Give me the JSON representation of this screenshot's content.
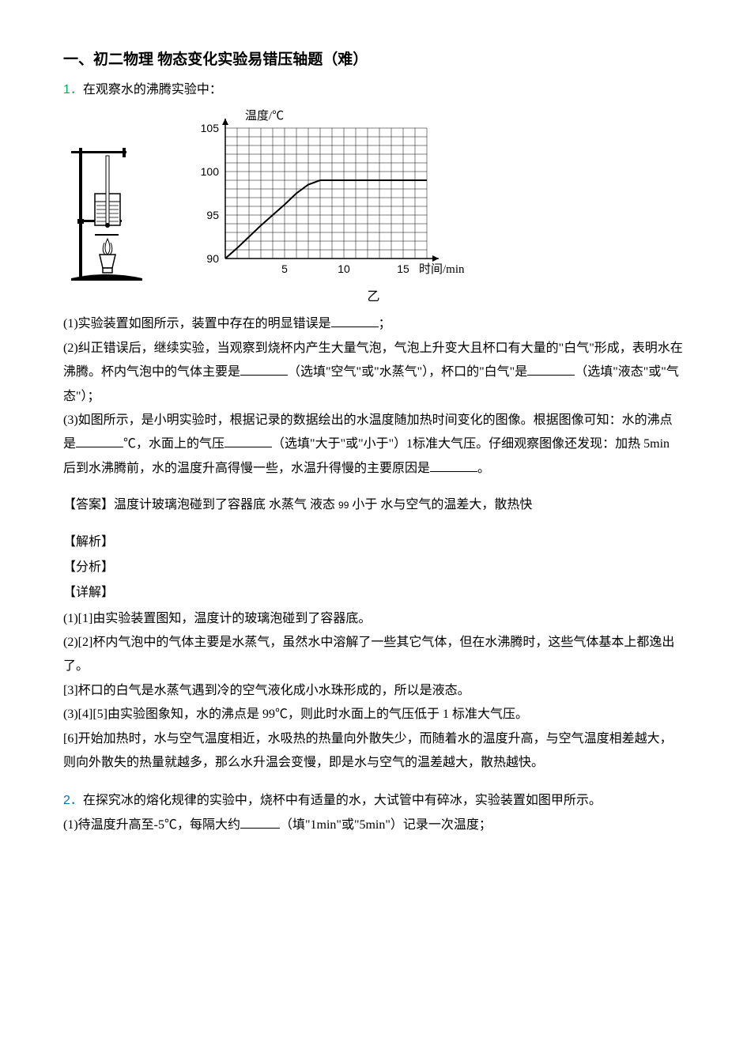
{
  "section_title": "一、初二物理 物态变化实验易错压轴题（难）",
  "q1": {
    "num": "1．",
    "stem": "在观察水的沸腾实验中：",
    "caption": "乙",
    "p1_a": "(1)实验装置如图所示，装置中存在的明显错误是",
    "p1_b": "；",
    "p2_a": "(2)纠正错误后，继续实验，当观察到烧杯内产生大量气泡，气泡上升变大且杯口有大量的\"白气\"形成，表明水在沸腾。杯内气泡中的气体主要是",
    "p2_b": "（选填\"空气\"或\"水蒸气\"），杯口的\"白气\"是",
    "p2_c": "（选填\"液态\"或\"气态\"）；",
    "p3_a": "(3)如图所示，是小明实验时，根据记录的数据绘出的水温度随加热时间变化的图像。根据图像可知：水的沸点是",
    "p3_b": "℃，水面上的气压",
    "p3_c": "（选填\"大于\"或\"小于\"）1标准大气压。仔细观察图像还发现：加热 5min 后到水沸腾前，水的温度升高得慢一些，水温升得慢的主要原因是",
    "p3_d": "。",
    "answer_label": "【答案】",
    "answer_text": "温度计玻璃泡碰到了容器底  水蒸气  液态  ",
    "answer_99": "99",
    "answer_rest": "  小于  水与空气的温差大，散热快",
    "jiexi": "【解析】",
    "fenxi": "【分析】",
    "xiangjie": "【详解】",
    "d1": "(1)[1]由实验装置图知，温度计的玻璃泡碰到了容器底。",
    "d2": "(2)[2]杯内气泡中的气体主要是水蒸气，虽然水中溶解了一些其它气体，但在水沸腾时，这些气体基本上都逸出了。",
    "d3": "[3]杯口的白气是水蒸气遇到冷的空气液化成小水珠形成的，所以是液态。",
    "d4": "(3)[4][5]由实验图象知，水的沸点是 99℃，则此时水面上的气压低于 1 标准大气压。",
    "d5": "[6]开始加热时，水与空气温度相近，水吸热的热量向外散失少，而随着水的温度升高，与空气温度相差越大，则向外散失的热量就越多，那么水升温会变慢，即是水与空气的温差越大，散热越快。"
  },
  "q2": {
    "num": "2．",
    "stem": "在探究冰的熔化规律的实验中，烧杯中有适量的水，大试管中有碎冰，实验装置如图甲所示。",
    "p1_a": "(1)待温度升高至-5℃，每隔大约",
    "p1_b": "（填\"1min\"或\"5min\"）记录一次温度；"
  },
  "chart": {
    "ylabel": "温度/℃",
    "xlabel": "时间/min",
    "ylim": [
      90,
      105
    ],
    "xlim": [
      0,
      17
    ],
    "yticks": [
      90,
      95,
      100,
      105
    ],
    "xticks": [
      5,
      10,
      15
    ],
    "grid_color": "#000000",
    "plateau_y": 99,
    "line_color": "#000000",
    "background": "#ffffff"
  },
  "blanks": {
    "w_short": "60px",
    "w_med": "60px"
  }
}
